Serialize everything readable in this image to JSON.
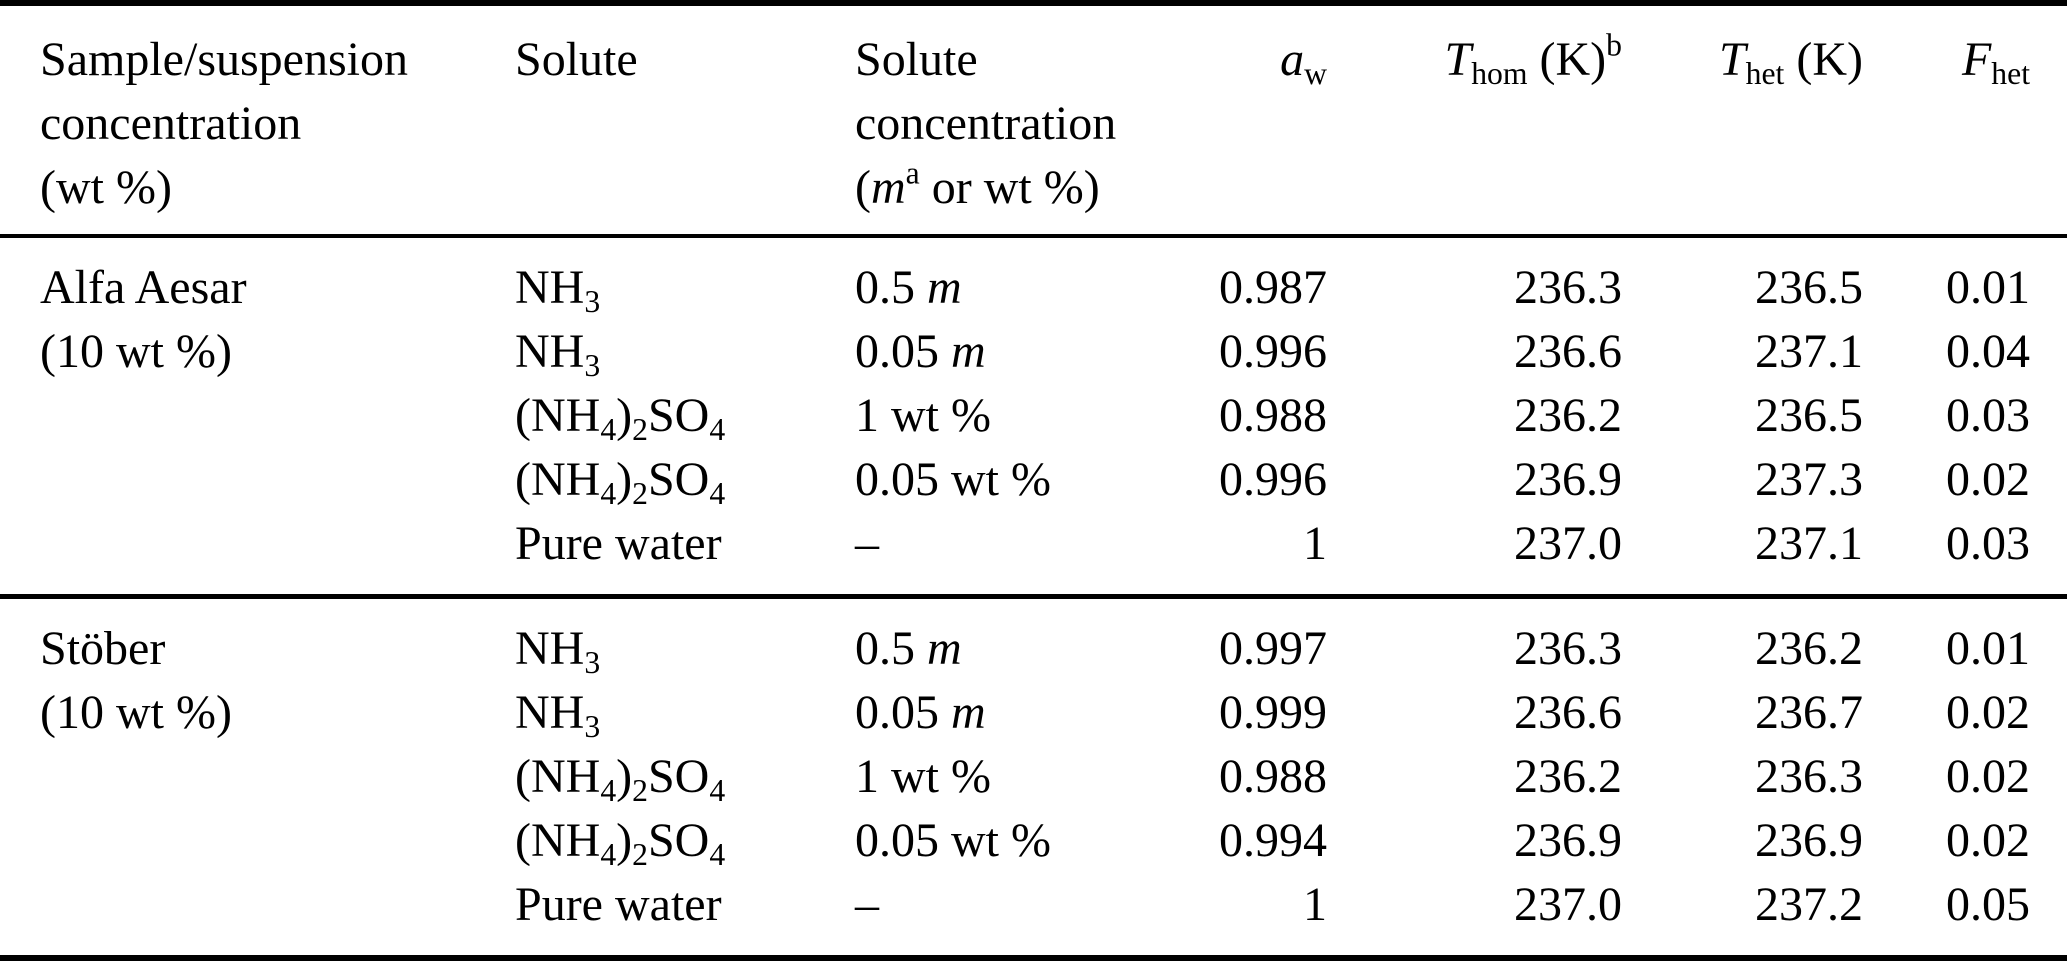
{
  "table": {
    "header": {
      "sample": {
        "lines": [
          [
            {
              "t": "Sample/suspension"
            }
          ],
          [
            {
              "t": "concentration"
            }
          ],
          [
            {
              "t": "(wt %)"
            }
          ]
        ]
      },
      "solute": {
        "lines": [
          [
            {
              "t": "Solute"
            }
          ]
        ]
      },
      "solute_concentration": {
        "lines": [
          [
            {
              "t": "Solute"
            }
          ],
          [
            {
              "t": "concentration"
            }
          ],
          [
            {
              "t": "("
            },
            {
              "t": "m",
              "i": true
            },
            {
              "t": "a",
              "v": "sup"
            },
            {
              "t": " or wt %)"
            }
          ]
        ]
      },
      "aw": [
        {
          "t": "a",
          "i": true
        },
        {
          "t": "w",
          "v": "sub"
        }
      ],
      "thom": [
        {
          "t": "T",
          "i": true
        },
        {
          "t": "hom",
          "v": "sub"
        },
        {
          "t": " (K)"
        },
        {
          "t": "b",
          "v": "sup"
        }
      ],
      "thet": [
        {
          "t": "T",
          "i": true
        },
        {
          "t": "het",
          "v": "sub"
        },
        {
          "t": " (K)"
        }
      ],
      "fhet": [
        {
          "t": "F",
          "i": true
        },
        {
          "t": "het",
          "v": "sub"
        }
      ]
    },
    "groups": [
      {
        "sample": [
          "Alfa Aesar",
          "(10 wt %)"
        ],
        "rows": [
          {
            "solute": [
              {
                "t": "NH"
              },
              {
                "t": "3",
                "v": "sub"
              }
            ],
            "conc": [
              {
                "t": "0.5 "
              },
              {
                "t": "m",
                "i": true
              }
            ],
            "aw": "0.987",
            "thom": "236.3",
            "thet": "236.5",
            "fhet": "0.01"
          },
          {
            "solute": [
              {
                "t": "NH"
              },
              {
                "t": "3",
                "v": "sub"
              }
            ],
            "conc": [
              {
                "t": "0.05 "
              },
              {
                "t": "m",
                "i": true
              }
            ],
            "aw": "0.996",
            "thom": "236.6",
            "thet": "237.1",
            "fhet": "0.04"
          },
          {
            "solute": [
              {
                "t": "(NH"
              },
              {
                "t": "4",
                "v": "sub"
              },
              {
                "t": ")"
              },
              {
                "t": "2",
                "v": "sub"
              },
              {
                "t": "SO"
              },
              {
                "t": "4",
                "v": "sub"
              }
            ],
            "conc": [
              {
                "t": "1 wt %"
              }
            ],
            "aw": "0.988",
            "thom": "236.2",
            "thet": "236.5",
            "fhet": "0.03"
          },
          {
            "solute": [
              {
                "t": "(NH"
              },
              {
                "t": "4",
                "v": "sub"
              },
              {
                "t": ")"
              },
              {
                "t": "2",
                "v": "sub"
              },
              {
                "t": "SO"
              },
              {
                "t": "4",
                "v": "sub"
              }
            ],
            "conc": [
              {
                "t": "0.05 wt %"
              }
            ],
            "aw": "0.996",
            "thom": "236.9",
            "thet": "237.3",
            "fhet": "0.02"
          },
          {
            "solute": [
              {
                "t": "Pure water"
              }
            ],
            "conc": [
              {
                "t": "–"
              }
            ],
            "aw": "1",
            "thom": "237.0",
            "thet": "237.1",
            "fhet": "0.03"
          }
        ]
      },
      {
        "sample": [
          "Stöber",
          "(10 wt %)"
        ],
        "rows": [
          {
            "solute": [
              {
                "t": "NH"
              },
              {
                "t": "3",
                "v": "sub"
              }
            ],
            "conc": [
              {
                "t": "0.5 "
              },
              {
                "t": "m",
                "i": true
              }
            ],
            "aw": "0.997",
            "thom": "236.3",
            "thet": "236.2",
            "fhet": "0.01"
          },
          {
            "solute": [
              {
                "t": "NH"
              },
              {
                "t": "3",
                "v": "sub"
              }
            ],
            "conc": [
              {
                "t": "0.05 "
              },
              {
                "t": "m",
                "i": true
              }
            ],
            "aw": "0.999",
            "thom": "236.6",
            "thet": "236.7",
            "fhet": "0.02"
          },
          {
            "solute": [
              {
                "t": "(NH"
              },
              {
                "t": "4",
                "v": "sub"
              },
              {
                "t": ")"
              },
              {
                "t": "2",
                "v": "sub"
              },
              {
                "t": "SO"
              },
              {
                "t": "4",
                "v": "sub"
              }
            ],
            "conc": [
              {
                "t": "1 wt %"
              }
            ],
            "aw": "0.988",
            "thom": "236.2",
            "thet": "236.3",
            "fhet": "0.02"
          },
          {
            "solute": [
              {
                "t": "(NH"
              },
              {
                "t": "4",
                "v": "sub"
              },
              {
                "t": ")"
              },
              {
                "t": "2",
                "v": "sub"
              },
              {
                "t": "SO"
              },
              {
                "t": "4",
                "v": "sub"
              }
            ],
            "conc": [
              {
                "t": "0.05 wt %"
              }
            ],
            "aw": "0.994",
            "thom": "236.9",
            "thet": "236.9",
            "fhet": "0.02"
          },
          {
            "solute": [
              {
                "t": "Pure water"
              }
            ],
            "conc": [
              {
                "t": "–"
              }
            ],
            "aw": "1",
            "thom": "237.0",
            "thet": "237.2",
            "fhet": "0.05"
          }
        ]
      }
    ]
  }
}
